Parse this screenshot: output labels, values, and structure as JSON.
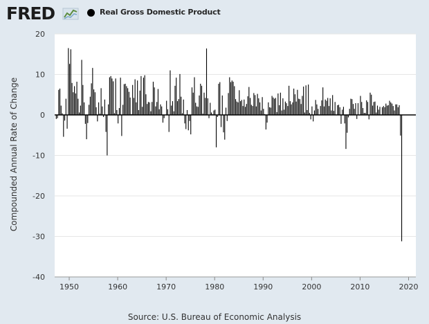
{
  "header": {
    "logo_text": "FRED",
    "legend_label": "Real Gross Domestic Product"
  },
  "source": "Source: U.S. Bureau of Economic Analysis",
  "colors": {
    "background": "#e1e9f0",
    "plot_background": "#ffffff",
    "bar": "#000000",
    "grid": "#e6e6e6",
    "logo_text": "#1c1c1c"
  },
  "chart_data": {
    "type": "bar",
    "title": "",
    "series_name": "Real Gross Domestic Product",
    "ylabel": "Compounded Annual Rate of Change",
    "xlabel": "",
    "ylim": [
      -40,
      20
    ],
    "xlim": [
      1947,
      2021.5
    ],
    "y_ticks": [
      20,
      10,
      0,
      -10,
      -20,
      -30,
      -40
    ],
    "x_ticks": [
      1950,
      1960,
      1970,
      1980,
      1990,
      2000,
      2010,
      2020
    ],
    "grid": true,
    "legend_position": "top-left",
    "frequency": "quarterly",
    "start": "1947Q2",
    "values": [
      -1.0,
      -0.8,
      6.2,
      6.5,
      2.3,
      0.4,
      -5.4,
      -1.4,
      4.0,
      -3.4,
      16.5,
      12.6,
      16.2,
      7.9,
      5.6,
      7.1,
      5.3,
      8.2,
      4.0,
      0.6,
      2.3,
      13.6,
      7.4,
      3.1,
      -2.2,
      -6.0,
      -2.0,
      2.5,
      4.5,
      7.8,
      11.6,
      6.3,
      5.6,
      1.9,
      -1.6,
      3.1,
      0.3,
      6.6,
      2.1,
      -0.5,
      3.8,
      -4.2,
      -10.0,
      2.6,
      9.3,
      9.6,
      9.0,
      8.3,
      0.4,
      9.0,
      1.2,
      -2.1,
      1.7,
      9.2,
      -5.2,
      2.5,
      7.6,
      7.7,
      7.1,
      6.6,
      5.7,
      4.3,
      0.2,
      7.4,
      4.2,
      8.8,
      3.1,
      8.5,
      1.2,
      6.0,
      9.6,
      2.0,
      9.2,
      9.8,
      5.1,
      2.7,
      3.2,
      3.1,
      0.9,
      3.2,
      8.2,
      6.8,
      2.1,
      3.2,
      6.4,
      1.4,
      2.6,
      2.1,
      -1.9,
      -0.8,
      0.1,
      3.5,
      1.4,
      -4.2,
      11.0,
      2.3,
      3.4,
      0.9,
      7.2,
      9.2,
      3.4,
      3.9,
      10.1,
      4.5,
      0.4,
      3.8,
      -2.1,
      -3.5,
      1.2,
      -3.8,
      -1.5,
      -4.8,
      6.8,
      5.5,
      9.3,
      3.0,
      2.1,
      2.0,
      4.8,
      7.7,
      7.2,
      0.3,
      5.5,
      4.2,
      16.4,
      4.1,
      -0.8,
      3.0,
      0.6,
      0.2,
      1.1,
      1.3,
      -8.0,
      -0.5,
      7.7,
      8.1,
      -3.0,
      4.8,
      -4.3,
      -6.1,
      1.8,
      -1.5,
      5.4,
      9.3,
      8.1,
      8.5,
      8.2,
      7.1,
      3.9,
      3.3,
      3.1,
      6.1,
      3.4,
      3.7,
      2.2,
      3.8,
      2.0,
      2.7,
      4.6,
      6.9,
      4.2,
      2.5,
      2.2,
      5.4,
      4.9,
      2.1,
      5.2,
      4.1,
      3.1,
      1.1,
      4.4,
      1.5,
      0.2,
      -3.6,
      -1.9,
      3.1,
      1.9,
      1.8,
      4.7,
      4.3,
      4.0,
      4.2,
      0.7,
      5.3,
      2.4,
      5.5,
      1.1,
      4.1,
      1.3,
      3.3,
      2.9,
      2.2,
      7.2,
      3.4,
      2.6,
      3.1,
      6.5,
      5.1,
      3.3,
      6.2,
      4.0,
      3.9,
      2.7,
      4.7,
      7.0,
      0.6,
      7.3,
      1.2,
      7.5,
      0.5,
      -1.1,
      2.1,
      -1.6,
      1.1,
      3.7,
      2.6,
      1.5,
      0.1,
      2.2,
      3.6,
      6.8,
      2.1,
      3.8,
      3.5,
      4.2,
      2.2,
      4.1,
      1.1,
      4.9,
      1.0,
      3.2,
      0.1,
      2.4,
      2.5,
      1.9,
      -2.2,
      1.3,
      2.0,
      -2.1,
      -8.4,
      -4.4,
      -0.6,
      1.5,
      4.0,
      3.9,
      2.7,
      1.5,
      2.9,
      -1.0,
      2.9,
      -0.1,
      4.7,
      3.2,
      1.7,
      0.5,
      0.5,
      3.6,
      3.2,
      -1.1,
      5.5,
      5.0,
      2.3,
      3.2,
      3.3,
      0.6,
      2.3,
      1.3,
      2.0,
      0.1,
      1.9,
      2.2,
      1.9,
      2.8,
      2.3,
      2.4,
      3.5,
      3.1,
      2.8,
      2.2,
      1.1,
      2.6,
      2.6,
      1.9,
      2.4,
      -5.1,
      -31.2
    ]
  }
}
